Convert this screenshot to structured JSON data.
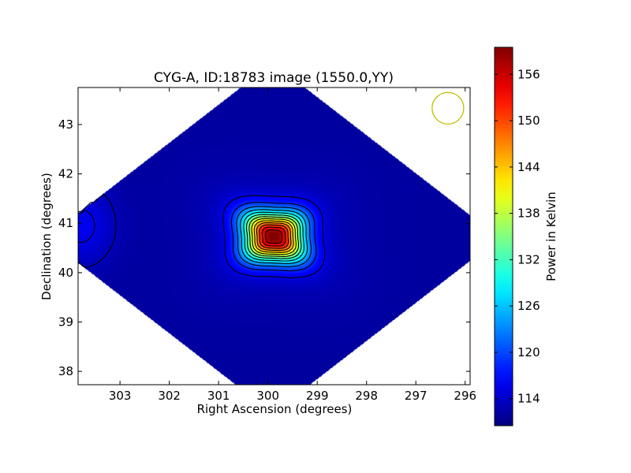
{
  "chart_data": {
    "type": "heatmap",
    "title": "CYG-A, ID:18783 image (1550.0,YY)",
    "xlabel": "Right Ascension (degrees)",
    "ylabel": "Declination (degrees)",
    "xlim": [
      303.85,
      295.9
    ],
    "ylim": [
      37.73,
      43.75
    ],
    "x_ticks": [
      {
        "value": 303,
        "label": "303"
      },
      {
        "value": 302,
        "label": "302"
      },
      {
        "value": 301,
        "label": "301"
      },
      {
        "value": 300,
        "label": "300"
      },
      {
        "value": 299,
        "label": "299"
      },
      {
        "value": 298,
        "label": "298"
      },
      {
        "value": 297,
        "label": "297"
      },
      {
        "value": 296,
        "label": "296"
      }
    ],
    "y_ticks": [
      {
        "value": 38,
        "label": "38"
      },
      {
        "value": 39,
        "label": "39"
      },
      {
        "value": 40,
        "label": "40"
      },
      {
        "value": 41,
        "label": "41"
      },
      {
        "value": 42,
        "label": "42"
      },
      {
        "value": 43,
        "label": "43"
      }
    ],
    "grid": false,
    "colormap": "jet",
    "colorbar": {
      "label": "Power in Kelvin",
      "range": [
        110.5,
        159.5
      ],
      "ticks": [
        {
          "value": 114,
          "label": "114"
        },
        {
          "value": 120,
          "label": "120"
        },
        {
          "value": 126,
          "label": "126"
        },
        {
          "value": 132,
          "label": "132"
        },
        {
          "value": 138,
          "label": "138"
        },
        {
          "value": 144,
          "label": "144"
        },
        {
          "value": 150,
          "label": "150"
        },
        {
          "value": 156,
          "label": "156"
        }
      ]
    },
    "peak": {
      "ra": 299.88,
      "dec": 40.73,
      "value": 158
    },
    "background_level": 112,
    "secondary_feature": {
      "ra": 303.8,
      "dec": 40.95,
      "level": 116
    },
    "beam_marker": {
      "ra": 296.35,
      "dec": 43.33,
      "radius_deg": 0.32,
      "color": "#bfbf00"
    },
    "contours": {
      "count": 13,
      "color": "#000000"
    }
  }
}
